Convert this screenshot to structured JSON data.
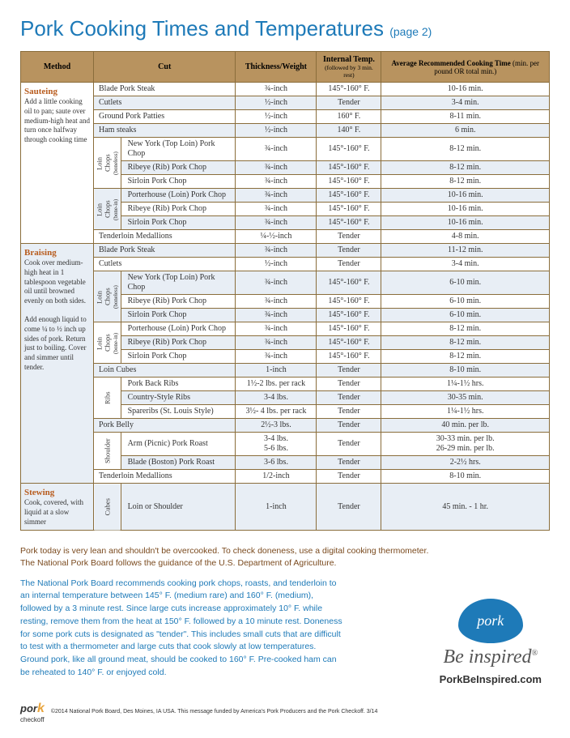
{
  "title": "Pork Cooking Times and Temperatures",
  "pagenote": "(page 2)",
  "headers": {
    "method": "Method",
    "cut": "Cut",
    "thick": "Thickness/Weight",
    "temp": "Internal Temp.",
    "temp_sub": "(followed by 3 min. rest)",
    "time": "Average Recommended Cooking Time",
    "time_sub": "(min. per pound OR total min.)"
  },
  "sauteing": {
    "name": "Sauteing",
    "desc": "Add a little cooking oil to pan; saute over medium-high heat and turn once halfway through cooking time",
    "rows": [
      {
        "cut": "Blade Pork Steak",
        "th": "¾-inch",
        "tp": "145°-160° F.",
        "tm": "10-16 min."
      },
      {
        "cut": "Cutlets",
        "th": "½-inch",
        "tp": "Tender",
        "tm": "3-4 min."
      },
      {
        "cut": "Ground Pork Patties",
        "th": "½-inch",
        "tp": "160° F.",
        "tm": "8-11 min."
      },
      {
        "cut": "Ham steaks",
        "th": "½-inch",
        "tp": "140° F.",
        "tm": "6 min."
      }
    ],
    "group1": {
      "label": "Loin Chops (boneless)",
      "rows": [
        {
          "cut": "New York (Top Loin) Pork Chop",
          "th": "¾-inch",
          "tp": "145°-160° F.",
          "tm": "8-12 min."
        },
        {
          "cut": "Ribeye (Rib) Pork Chop",
          "th": "¾-inch",
          "tp": "145°-160° F.",
          "tm": "8-12 min."
        },
        {
          "cut": "Sirloin Pork Chop",
          "th": "¾-inch",
          "tp": "145°-160° F.",
          "tm": "8-12 min."
        }
      ]
    },
    "group2": {
      "label": "Loin Chops (bone-in)",
      "rows": [
        {
          "cut": "Porterhouse (Loin) Pork Chop",
          "th": "¾-inch",
          "tp": "145°-160° F.",
          "tm": "10-16 min."
        },
        {
          "cut": "Ribeye (Rib) Pork Chop",
          "th": "¾-inch",
          "tp": "145°-160° F.",
          "tm": "10-16 min."
        },
        {
          "cut": "Sirloin Pork Chop",
          "th": "¾-inch",
          "tp": "145°-160° F.",
          "tm": "10-16 min."
        }
      ]
    },
    "tail": {
      "cut": "Tenderloin Medallions",
      "th": "¼-½-inch",
      "tp": "Tender",
      "tm": "4-8 min."
    }
  },
  "braising": {
    "name": "Braising",
    "desc": "Cook over medium-high heat in 1 tablespoon vegetable oil until browned evenly on both sides.\n\nAdd enough liquid to come ¼ to ½ inch up sides of pork. Return just to boiling. Cover and simmer until tender.",
    "rows": [
      {
        "cut": "Blade Pork Steak",
        "th": "¾-inch",
        "tp": "Tender",
        "tm": "11-12 min."
      },
      {
        "cut": "Cutlets",
        "th": "½-inch",
        "tp": "Tender",
        "tm": "3-4 min."
      }
    ],
    "group1": {
      "label": "Loin Chops (boneless)",
      "rows": [
        {
          "cut": "New York (Top Loin) Pork Chop",
          "th": "¾-inch",
          "tp": "145°-160° F.",
          "tm": "6-10 min."
        },
        {
          "cut": "Ribeye (Rib) Pork Chop",
          "th": "¾-inch",
          "tp": "145°-160° F.",
          "tm": "6-10 min."
        },
        {
          "cut": "Sirloin Pork Chop",
          "th": "¾-inch",
          "tp": "145°-160° F.",
          "tm": "6-10 min."
        }
      ]
    },
    "group2": {
      "label": "Loin Chops (bone-in)",
      "rows": [
        {
          "cut": "Porterhouse (Loin) Pork Chop",
          "th": "¾-inch",
          "tp": "145°-160° F.",
          "tm": "8-12 min."
        },
        {
          "cut": "Ribeye (Rib) Pork Chop",
          "th": "¾-inch",
          "tp": "145°-160° F.",
          "tm": "8-12 min."
        },
        {
          "cut": "Sirloin Pork Chop",
          "th": "¾-inch",
          "tp": "145°-160° F.",
          "tm": "8-12 min."
        }
      ]
    },
    "loincubes": {
      "cut": "Loin Cubes",
      "th": "1-inch",
      "tp": "Tender",
      "tm": "8-10 min."
    },
    "ribs": {
      "label": "Ribs",
      "rows": [
        {
          "cut": "Pork Back Ribs",
          "th": "1½-2 lbs. per rack",
          "tp": "Tender",
          "tm": "1¼-1½ hrs."
        },
        {
          "cut": "Country-Style Ribs",
          "th": "3-4 lbs.",
          "tp": "Tender",
          "tm": "30-35 min."
        },
        {
          "cut": "Spareribs (St. Louis Style)",
          "th": "3½- 4 lbs. per rack",
          "tp": "Tender",
          "tm": "1¼-1½ hrs."
        }
      ]
    },
    "belly": {
      "cut": "Pork Belly",
      "th": "2½-3 lbs.",
      "tp": "Tender",
      "tm": "40 min. per lb."
    },
    "shoulder": {
      "label": "Shoulder",
      "rows": [
        {
          "cut": "Arm (Picnic) Pork Roast",
          "th": "3-4 lbs.\n5-6 lbs.",
          "tp": "Tender",
          "tm": "30-33 min. per lb.\n26-29 min. per lb."
        },
        {
          "cut": "Blade (Boston) Pork Roast",
          "th": "3-6 lbs.",
          "tp": "Tender",
          "tm": "2-2½ hrs."
        }
      ]
    },
    "tail": {
      "cut": "Tenderloin Medallions",
      "th": "1/2-inch",
      "tp": "Tender",
      "tm": "8-10 min."
    }
  },
  "stewing": {
    "name": "Stewing",
    "desc": "Cook, covered, with liquid at a slow simmer",
    "label": "Cubes",
    "row": {
      "cut": "Loin or Shoulder",
      "th": "1-inch",
      "tp": "Tender",
      "tm": "45 min. - 1 hr."
    }
  },
  "note1": "Pork today is very lean and shouldn't be overcooked. To check doneness, use a digital cooking thermometer.",
  "note2": "The National Pork Board follows the guidance of the U.S. Department of Agriculture.",
  "body": "The National Pork Board recommends cooking pork chops, roasts, and tenderloin to an internal temperature between 145° F. (medium rare) and 160° F. (medium), followed by a 3 minute rest. Since large cuts increase approximately 10° F. while resting, remove them from the heat at 150° F. followed by a 10 minute rest. Doneness for some pork cuts is designated as \"tender\". This includes small cuts that are difficult to test with a thermometer and large cuts that cook slowly at low temperatures. Ground pork, like all ground meat, should be cooked to 160° F. Pre-cooked ham can be reheated to 140° F. or enjoyed cold.",
  "logo": {
    "word": "pork",
    "tag": "Be inspired",
    "url": "PorkBeInspired.com"
  },
  "checkoff": {
    "brand": "pork",
    "sub": "checkoff"
  },
  "copyright": "©2014 National Pork Board, Des Moines, IA USA. This message funded by America's Pork Producers and the Pork Checkoff.  3/14"
}
